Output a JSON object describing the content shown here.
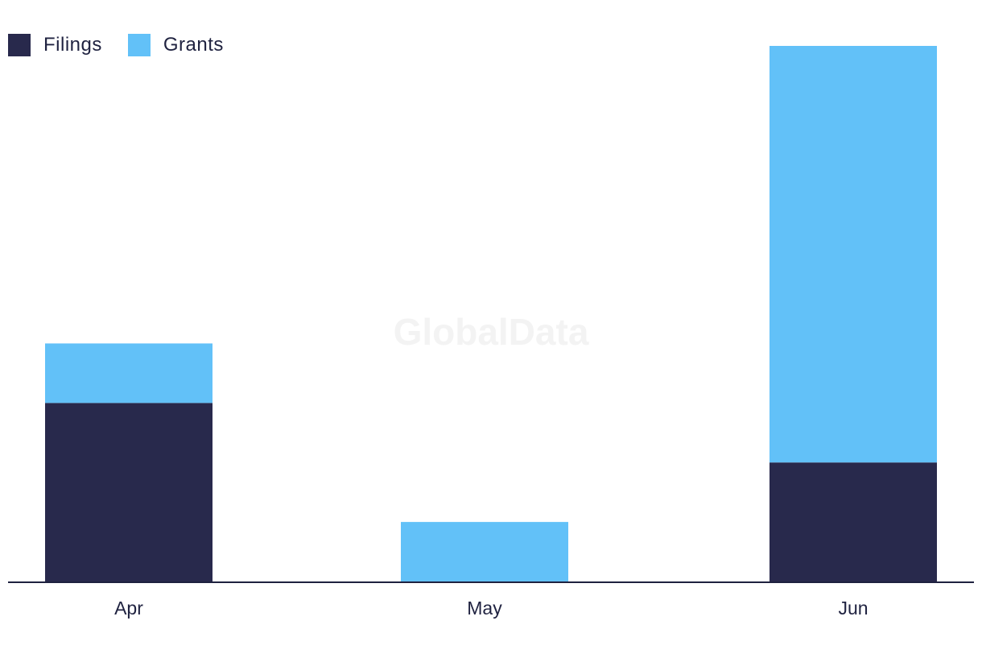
{
  "watermark": "GlobalData",
  "chart_data": {
    "type": "bar",
    "stacked": true,
    "categories": [
      "Apr",
      "May",
      "Jun"
    ],
    "series": [
      {
        "name": "Filings",
        "color": "#28294c",
        "values": [
          3,
          0,
          2
        ]
      },
      {
        "name": "Grants",
        "color": "#62c1f8",
        "values": [
          1,
          1,
          7
        ]
      }
    ],
    "ylim": [
      0,
      9
    ],
    "grid": false,
    "legend": "top-left"
  }
}
